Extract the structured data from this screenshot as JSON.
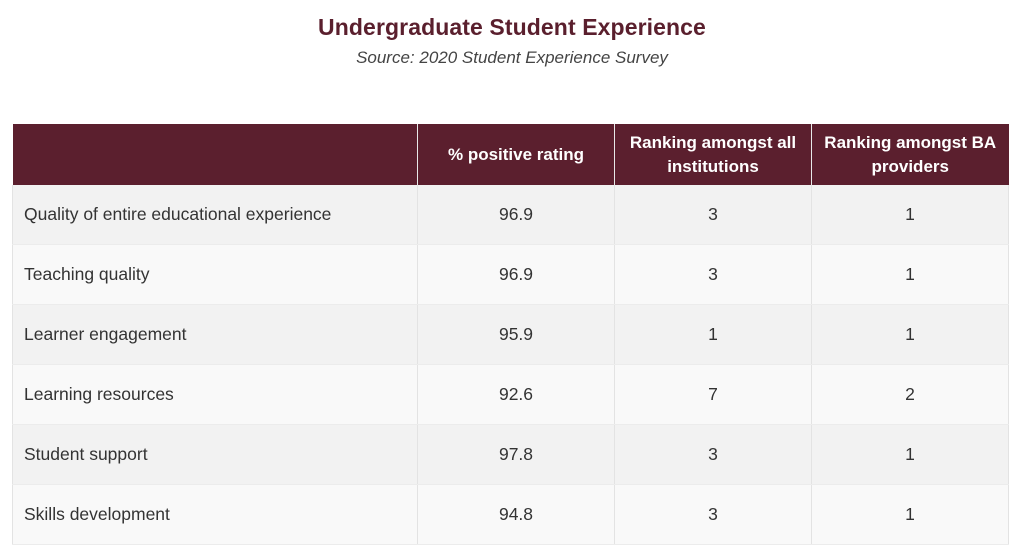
{
  "title": "Undergraduate Student Experience",
  "subtitle": "Source: 2020 Student Experience Survey",
  "colors": {
    "header_bg": "#5b1f2e",
    "title_text": "#5a1f2d",
    "row_odd": "#f2f2f2",
    "row_even": "#f9f9f9"
  },
  "columns": [
    "",
    "% positive rating",
    "Ranking amongst all institutions",
    "Ranking amongst BA providers"
  ],
  "rows": [
    {
      "label": "Quality of entire educational experience",
      "rating": "96.9",
      "rank_all": "3",
      "rank_ba": "1"
    },
    {
      "label": "Teaching quality",
      "rating": "96.9",
      "rank_all": "3",
      "rank_ba": "1"
    },
    {
      "label": "Learner engagement",
      "rating": "95.9",
      "rank_all": "1",
      "rank_ba": "1"
    },
    {
      "label": "Learning resources",
      "rating": "92.6",
      "rank_all": "7",
      "rank_ba": "2"
    },
    {
      "label": "Student support",
      "rating": "97.8",
      "rank_all": "3",
      "rank_ba": "1"
    },
    {
      "label": "Skills development",
      "rating": "94.8",
      "rank_all": "3",
      "rank_ba": "1"
    }
  ]
}
